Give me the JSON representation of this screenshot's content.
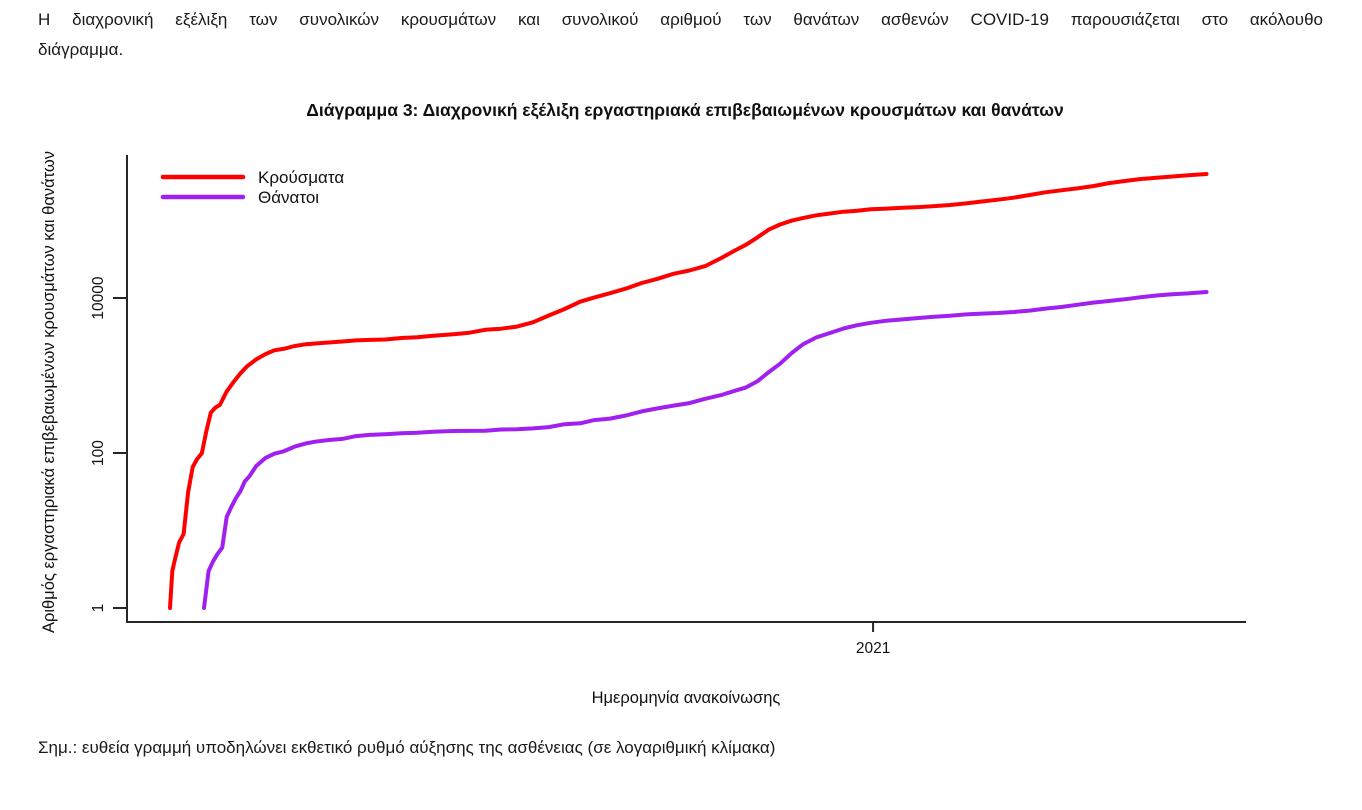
{
  "document": {
    "intro_lines": [
      "Η διαχρονική εξέλιξη των συνολικών κρουσμάτων και συνολικού αριθμού των θανάτων ασθενών COVID-19 παρουσιάζεται στο ακόλουθο",
      "διάγραμμα."
    ],
    "note": "Σημ.: ευθεία γραμμή υποδηλώνει εκθετικό ρυθμό αύξησης της ασθένειας (σε λογαριθμική κλίμακα)"
  },
  "chart_data": {
    "type": "line",
    "title": "Διάγραμμα 3: Διαχρονική εξέλιξη εργαστηριακά επιβεβαιωμένων κρουσμάτων και θανάτων",
    "xlabel": "Ημερομηνία ανακοίνωσης",
    "ylabel": "Αριθμός εργαστηριακά επιβεβαιωμένων κρουσμάτων και θανάτων",
    "y_scale": "log10",
    "grid": "off",
    "legend_position": "top-left-inside",
    "y_ticks": [
      1,
      100,
      10000
    ],
    "y_tick_labels": [
      "1",
      "100",
      "10000"
    ],
    "x_ticks": [
      "2021-01-01"
    ],
    "x_tick_labels": [
      "2021"
    ],
    "x_range": [
      "2020-02-26",
      "2021-05-28"
    ],
    "ylim": [
      1,
      700000
    ],
    "axis_color": "#262626",
    "series": [
      {
        "name": "Κρούσματα",
        "color": "#ff0000",
        "points": [
          [
            "2020-02-26",
            1
          ],
          [
            "2020-02-27",
            3
          ],
          [
            "2020-02-28",
            4
          ],
          [
            "2020-03-01",
            7
          ],
          [
            "2020-03-03",
            9
          ],
          [
            "2020-03-05",
            31
          ],
          [
            "2020-03-07",
            66
          ],
          [
            "2020-03-09",
            84
          ],
          [
            "2020-03-11",
            99
          ],
          [
            "2020-03-13",
            190
          ],
          [
            "2020-03-15",
            331
          ],
          [
            "2020-03-17",
            387
          ],
          [
            "2020-03-19",
            418
          ],
          [
            "2020-03-22",
            624
          ],
          [
            "2020-03-25",
            821
          ],
          [
            "2020-03-28",
            1061
          ],
          [
            "2020-03-31",
            1314
          ],
          [
            "2020-04-04",
            1613
          ],
          [
            "2020-04-08",
            1884
          ],
          [
            "2020-04-12",
            2114
          ],
          [
            "2020-04-16",
            2207
          ],
          [
            "2020-04-21",
            2401
          ],
          [
            "2020-04-26",
            2534
          ],
          [
            "2020-04-30",
            2591
          ],
          [
            "2020-05-06",
            2663
          ],
          [
            "2020-05-12",
            2744
          ],
          [
            "2020-05-18",
            2834
          ],
          [
            "2020-05-24",
            2882
          ],
          [
            "2020-05-31",
            2915
          ],
          [
            "2020-06-07",
            3049
          ],
          [
            "2020-06-14",
            3121
          ],
          [
            "2020-06-21",
            3266
          ],
          [
            "2020-06-30",
            3409
          ],
          [
            "2020-07-07",
            3562
          ],
          [
            "2020-07-14",
            3883
          ],
          [
            "2020-07-21",
            4012
          ],
          [
            "2020-07-28",
            4279
          ],
          [
            "2020-08-04",
            4855
          ],
          [
            "2020-08-11",
            5942
          ],
          [
            "2020-08-18",
            7222
          ],
          [
            "2020-08-25",
            8987
          ],
          [
            "2020-08-31",
            10134
          ],
          [
            "2020-09-07",
            11524
          ],
          [
            "2020-09-14",
            13240
          ],
          [
            "2020-09-21",
            15595
          ],
          [
            "2020-09-28",
            17707
          ],
          [
            "2020-10-05",
            20541
          ],
          [
            "2020-10-12",
            22652
          ],
          [
            "2020-10-19",
            25802
          ],
          [
            "2020-10-26",
            32752
          ],
          [
            "2020-11-01",
            40929
          ],
          [
            "2020-11-06",
            48770
          ],
          [
            "2020-11-11",
            60570
          ],
          [
            "2020-11-16",
            76403
          ],
          [
            "2020-11-21",
            88882
          ],
          [
            "2020-11-26",
            99306
          ],
          [
            "2020-12-01",
            107470
          ],
          [
            "2020-12-07",
            116721
          ],
          [
            "2020-12-13",
            123185
          ],
          [
            "2020-12-19",
            129761
          ],
          [
            "2020-12-25",
            133346
          ],
          [
            "2020-12-31",
            139447
          ],
          [
            "2021-01-07",
            142476
          ],
          [
            "2021-01-14",
            145799
          ],
          [
            "2021-01-21",
            149097
          ],
          [
            "2021-01-28",
            153226
          ],
          [
            "2021-02-04",
            158716
          ],
          [
            "2021-02-11",
            166421
          ],
          [
            "2021-02-18",
            175850
          ],
          [
            "2021-02-25",
            185397
          ],
          [
            "2021-03-04",
            196630
          ],
          [
            "2021-03-11",
            213309
          ],
          [
            "2021-03-18",
            231194
          ],
          [
            "2021-03-25",
            245405
          ],
          [
            "2021-04-01",
            259853
          ],
          [
            "2021-04-08",
            277555
          ],
          [
            "2021-04-15",
            304184
          ],
          [
            "2021-04-22",
            322906
          ],
          [
            "2021-04-29",
            342908
          ],
          [
            "2021-05-06",
            355484
          ],
          [
            "2021-05-13",
            370152
          ],
          [
            "2021-05-20",
            383558
          ],
          [
            "2021-05-28",
            397842
          ]
        ]
      },
      {
        "name": "Θάνατοι",
        "color": "#a020f0",
        "points": [
          [
            "2020-03-12",
            1
          ],
          [
            "2020-03-14",
            3
          ],
          [
            "2020-03-16",
            4
          ],
          [
            "2020-03-18",
            5
          ],
          [
            "2020-03-20",
            6
          ],
          [
            "2020-03-22",
            15
          ],
          [
            "2020-03-24",
            20
          ],
          [
            "2020-03-26",
            26
          ],
          [
            "2020-03-28",
            32
          ],
          [
            "2020-03-30",
            43
          ],
          [
            "2020-04-01",
            50
          ],
          [
            "2020-04-04",
            68
          ],
          [
            "2020-04-08",
            86
          ],
          [
            "2020-04-12",
            98
          ],
          [
            "2020-04-16",
            105
          ],
          [
            "2020-04-21",
            121
          ],
          [
            "2020-04-26",
            133
          ],
          [
            "2020-04-30",
            140
          ],
          [
            "2020-05-06",
            147
          ],
          [
            "2020-05-12",
            152
          ],
          [
            "2020-05-18",
            165
          ],
          [
            "2020-05-24",
            171
          ],
          [
            "2020-05-31",
            175
          ],
          [
            "2020-06-07",
            180
          ],
          [
            "2020-06-14",
            183
          ],
          [
            "2020-06-21",
            188
          ],
          [
            "2020-06-30",
            192
          ],
          [
            "2020-07-07",
            193
          ],
          [
            "2020-07-14",
            194
          ],
          [
            "2020-07-21",
            201
          ],
          [
            "2020-07-28",
            203
          ],
          [
            "2020-08-04",
            208
          ],
          [
            "2020-08-11",
            216
          ],
          [
            "2020-08-18",
            235
          ],
          [
            "2020-08-25",
            242
          ],
          [
            "2020-08-31",
            266
          ],
          [
            "2020-09-07",
            278
          ],
          [
            "2020-09-14",
            305
          ],
          [
            "2020-09-21",
            344
          ],
          [
            "2020-09-28",
            376
          ],
          [
            "2020-10-05",
            409
          ],
          [
            "2020-10-12",
            441
          ],
          [
            "2020-10-19",
            500
          ],
          [
            "2020-10-26",
            559
          ],
          [
            "2020-11-01",
            635
          ],
          [
            "2020-11-06",
            702
          ],
          [
            "2020-11-11",
            842
          ],
          [
            "2020-11-16",
            1106
          ],
          [
            "2020-11-21",
            1419
          ],
          [
            "2020-11-26",
            1936
          ],
          [
            "2020-12-01",
            2517
          ],
          [
            "2020-12-07",
            3099
          ],
          [
            "2020-12-13",
            3540
          ],
          [
            "2020-12-19",
            4044
          ],
          [
            "2020-12-25",
            4457
          ],
          [
            "2020-12-31",
            4788
          ],
          [
            "2021-01-07",
            5099
          ],
          [
            "2021-01-14",
            5302
          ],
          [
            "2021-01-21",
            5524
          ],
          [
            "2021-01-28",
            5724
          ],
          [
            "2021-02-04",
            5903
          ],
          [
            "2021-02-11",
            6152
          ],
          [
            "2021-02-18",
            6297
          ],
          [
            "2021-02-25",
            6410
          ],
          [
            "2021-03-04",
            6597
          ],
          [
            "2021-03-11",
            6886
          ],
          [
            "2021-03-18",
            7297
          ],
          [
            "2021-03-25",
            7649
          ],
          [
            "2021-04-01",
            8160
          ],
          [
            "2021-04-08",
            8732
          ],
          [
            "2021-04-15",
            9135
          ],
          [
            "2021-04-22",
            9627
          ],
          [
            "2021-04-29",
            10242
          ],
          [
            "2021-05-06",
            10787
          ],
          [
            "2021-05-13",
            11211
          ],
          [
            "2021-05-20",
            11471
          ],
          [
            "2021-05-28",
            11955
          ]
        ]
      }
    ]
  }
}
